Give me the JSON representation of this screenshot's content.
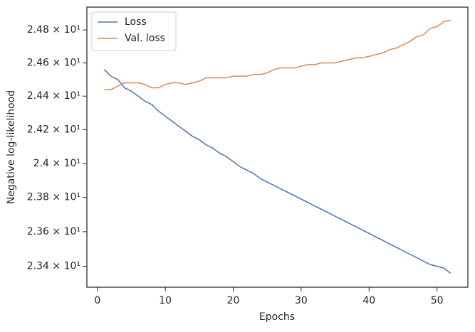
{
  "chart_data": {
    "type": "line",
    "xlabel": "Epochs",
    "ylabel": "Negative log-likelihood",
    "x": [
      1,
      2,
      3,
      4,
      5,
      6,
      7,
      8,
      9,
      10,
      11,
      12,
      13,
      14,
      15,
      16,
      17,
      18,
      19,
      20,
      21,
      22,
      23,
      24,
      25,
      26,
      27,
      28,
      29,
      30,
      31,
      32,
      33,
      34,
      35,
      36,
      37,
      38,
      39,
      40,
      41,
      42,
      43,
      44,
      45,
      46,
      47,
      48,
      49,
      50,
      51,
      52
    ],
    "series": [
      {
        "name": "Loss",
        "color": "#4c72b0",
        "values": [
          24.56,
          24.52,
          24.5,
          24.45,
          24.43,
          24.4,
          24.37,
          24.35,
          24.31,
          24.28,
          24.25,
          24.22,
          24.19,
          24.16,
          24.14,
          24.11,
          24.09,
          24.06,
          24.04,
          24.01,
          23.98,
          23.96,
          23.94,
          23.91,
          23.89,
          23.87,
          23.85,
          23.83,
          23.81,
          23.79,
          23.77,
          23.75,
          23.73,
          23.71,
          23.69,
          23.67,
          23.65,
          23.63,
          23.61,
          23.59,
          23.57,
          23.55,
          23.53,
          23.51,
          23.49,
          23.47,
          23.45,
          23.43,
          23.41,
          23.4,
          23.39,
          23.36
        ]
      },
      {
        "name": "Val. loss",
        "color": "#dd8452",
        "values": [
          24.44,
          24.44,
          24.46,
          24.48,
          24.48,
          24.48,
          24.47,
          24.45,
          24.45,
          24.47,
          24.48,
          24.48,
          24.47,
          24.48,
          24.49,
          24.51,
          24.51,
          24.51,
          24.51,
          24.52,
          24.52,
          24.52,
          24.53,
          24.53,
          24.54,
          24.56,
          24.57,
          24.57,
          24.57,
          24.58,
          24.59,
          24.59,
          24.6,
          24.6,
          24.6,
          24.61,
          24.62,
          24.63,
          24.63,
          24.64,
          24.65,
          24.66,
          24.68,
          24.69,
          24.71,
          24.73,
          24.76,
          24.77,
          24.81,
          24.82,
          24.85,
          24.86
        ]
      }
    ],
    "xlim": [
      -1.55,
      54.55
    ],
    "xticks": [
      0,
      10,
      20,
      30,
      40,
      50
    ],
    "ylim": [
      23.28,
      24.94
    ],
    "yscale": "log",
    "yticks": [
      {
        "value": 23.4,
        "label": "2.34 × 10¹"
      },
      {
        "value": 23.6,
        "label": "2.36 × 10¹"
      },
      {
        "value": 23.8,
        "label": "2.38 × 10¹"
      },
      {
        "value": 24,
        "label": "2.4 × 10¹"
      },
      {
        "value": 24.2,
        "label": "2.42 × 10¹"
      },
      {
        "value": 24.4,
        "label": "2.44 × 10¹"
      },
      {
        "value": 24.6,
        "label": "2.46 × 10¹"
      },
      {
        "value": 24.8,
        "label": "2.48 × 10¹"
      }
    ],
    "grid": false,
    "legend": "upper left"
  }
}
